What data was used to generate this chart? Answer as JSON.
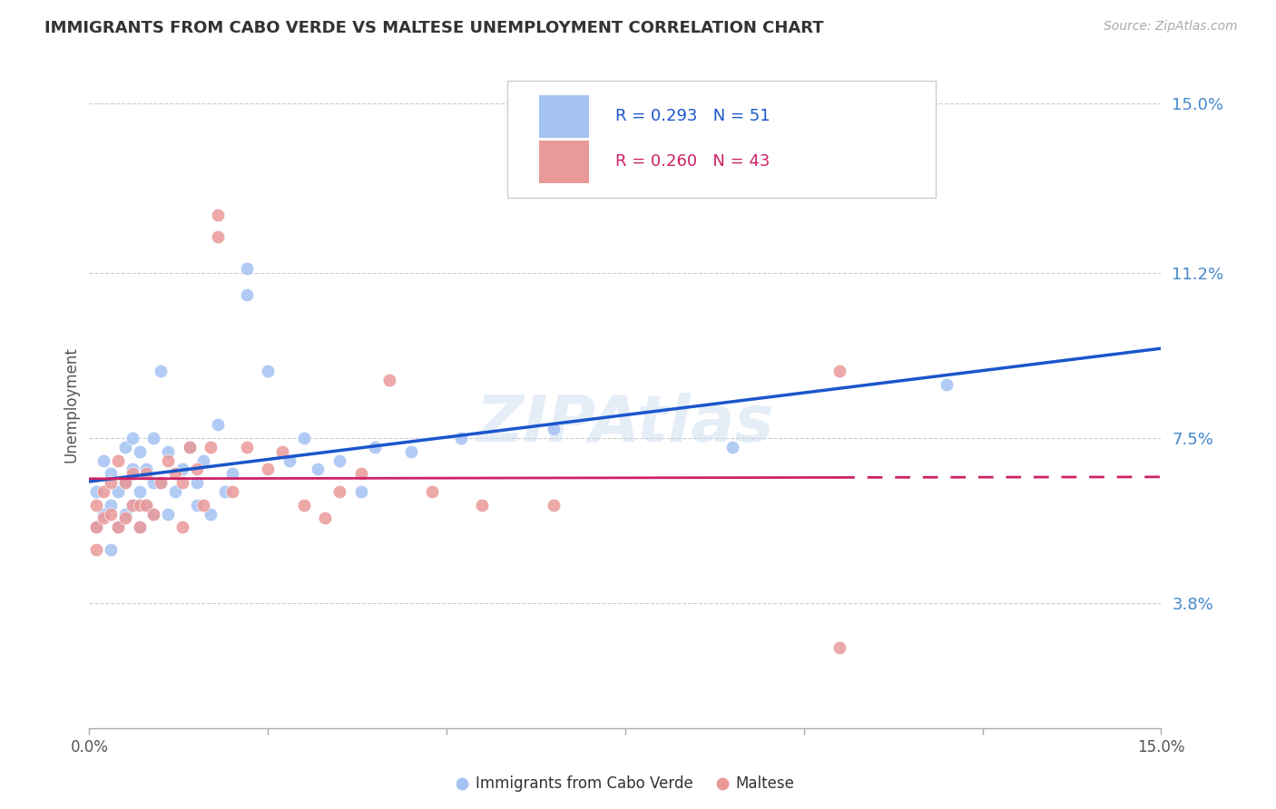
{
  "title": "IMMIGRANTS FROM CABO VERDE VS MALTESE UNEMPLOYMENT CORRELATION CHART",
  "source": "Source: ZipAtlas.com",
  "ylabel": "Unemployment",
  "legend_label_blue": "Immigrants from Cabo Verde",
  "legend_label_pink": "Maltese",
  "xmin": 0.0,
  "xmax": 0.15,
  "ymin": 0.01,
  "ymax": 0.155,
  "ytick_vals": [
    0.038,
    0.075,
    0.112,
    0.15
  ],
  "ytick_labels": [
    "3.8%",
    "7.5%",
    "11.2%",
    "15.0%"
  ],
  "blue_R": "0.293",
  "blue_N": "51",
  "pink_R": "0.260",
  "pink_N": "43",
  "blue_color": "#a4c2f4",
  "pink_color": "#ea9999",
  "trend_blue_color": "#1a56cc",
  "trend_pink_color": "#cc2266",
  "watermark": "ZIPAtlas",
  "blue_scatter_x": [
    0.001,
    0.001,
    0.002,
    0.002,
    0.003,
    0.003,
    0.003,
    0.004,
    0.004,
    0.005,
    0.005,
    0.005,
    0.006,
    0.006,
    0.006,
    0.007,
    0.007,
    0.007,
    0.008,
    0.008,
    0.009,
    0.009,
    0.009,
    0.01,
    0.01,
    0.011,
    0.011,
    0.012,
    0.013,
    0.014,
    0.015,
    0.015,
    0.016,
    0.017,
    0.018,
    0.019,
    0.02,
    0.022,
    0.022,
    0.025,
    0.028,
    0.03,
    0.032,
    0.035,
    0.038,
    0.04,
    0.045,
    0.052,
    0.065,
    0.09,
    0.12
  ],
  "blue_scatter_y": [
    0.063,
    0.055,
    0.07,
    0.058,
    0.067,
    0.06,
    0.05,
    0.063,
    0.055,
    0.073,
    0.065,
    0.058,
    0.075,
    0.068,
    0.06,
    0.072,
    0.063,
    0.055,
    0.068,
    0.06,
    0.075,
    0.065,
    0.058,
    0.09,
    0.065,
    0.072,
    0.058,
    0.063,
    0.068,
    0.073,
    0.06,
    0.065,
    0.07,
    0.058,
    0.078,
    0.063,
    0.067,
    0.113,
    0.107,
    0.09,
    0.07,
    0.075,
    0.068,
    0.07,
    0.063,
    0.073,
    0.072,
    0.075,
    0.077,
    0.073,
    0.087
  ],
  "pink_scatter_x": [
    0.001,
    0.001,
    0.001,
    0.002,
    0.002,
    0.003,
    0.003,
    0.004,
    0.004,
    0.005,
    0.005,
    0.006,
    0.006,
    0.007,
    0.007,
    0.008,
    0.008,
    0.009,
    0.01,
    0.011,
    0.012,
    0.013,
    0.013,
    0.014,
    0.015,
    0.016,
    0.017,
    0.018,
    0.018,
    0.02,
    0.022,
    0.025,
    0.027,
    0.03,
    0.033,
    0.035,
    0.038,
    0.042,
    0.048,
    0.055,
    0.065,
    0.105,
    0.105
  ],
  "pink_scatter_y": [
    0.06,
    0.055,
    0.05,
    0.063,
    0.057,
    0.065,
    0.058,
    0.07,
    0.055,
    0.065,
    0.057,
    0.067,
    0.06,
    0.06,
    0.055,
    0.067,
    0.06,
    0.058,
    0.065,
    0.07,
    0.067,
    0.065,
    0.055,
    0.073,
    0.068,
    0.06,
    0.073,
    0.125,
    0.12,
    0.063,
    0.073,
    0.068,
    0.072,
    0.06,
    0.057,
    0.063,
    0.067,
    0.088,
    0.063,
    0.06,
    0.06,
    0.09,
    0.028
  ]
}
